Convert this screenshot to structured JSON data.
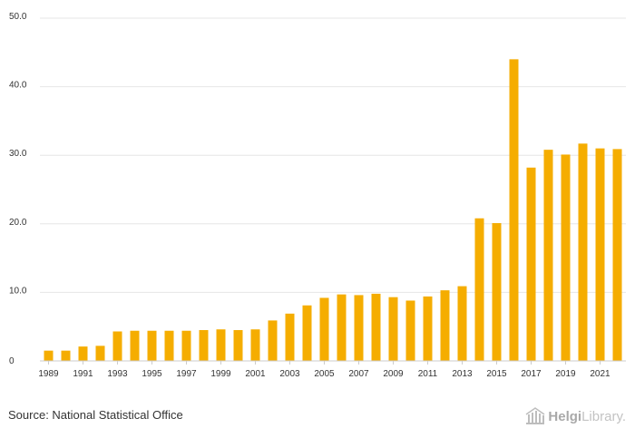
{
  "chart_data": {
    "type": "bar",
    "categories": [
      "1989",
      "1990",
      "1991",
      "1992",
      "1993",
      "1994",
      "1995",
      "1996",
      "1997",
      "1998",
      "1999",
      "2000",
      "2001",
      "2002",
      "2003",
      "2004",
      "2005",
      "2006",
      "2007",
      "2008",
      "2009",
      "2010",
      "2011",
      "2012",
      "2013",
      "2014",
      "2015",
      "2016",
      "2017",
      "2018",
      "2019",
      "2020",
      "2021",
      "2022"
    ],
    "values": [
      1.5,
      1.5,
      2.1,
      2.2,
      4.3,
      4.4,
      4.4,
      4.4,
      4.4,
      4.5,
      4.6,
      4.5,
      4.6,
      5.9,
      6.9,
      8.1,
      9.2,
      9.7,
      9.6,
      9.8,
      9.3,
      8.8,
      9.4,
      10.3,
      10.9,
      20.8,
      20.1,
      44.0,
      28.2,
      30.8,
      30.1,
      31.7,
      31.0,
      30.9
    ],
    "x_tick_labels": [
      "1989",
      "1991",
      "1993",
      "1995",
      "1997",
      "1999",
      "2001",
      "2003",
      "2005",
      "2007",
      "2009",
      "2011",
      "2013",
      "2015",
      "2017",
      "2019",
      "2021"
    ],
    "y_tick_labels": [
      "0",
      "10.0",
      "20.0",
      "30.0",
      "40.0",
      "50.0"
    ],
    "ylim": [
      0,
      50
    ],
    "grid": true,
    "bar_color": "#f5ad00",
    "grid_color": "#e6e6e6",
    "axis_color": "#cccccc"
  },
  "footer": {
    "source": "Source: National Statistical Office",
    "logo_bold": "Helgi",
    "logo_light": "Library."
  }
}
